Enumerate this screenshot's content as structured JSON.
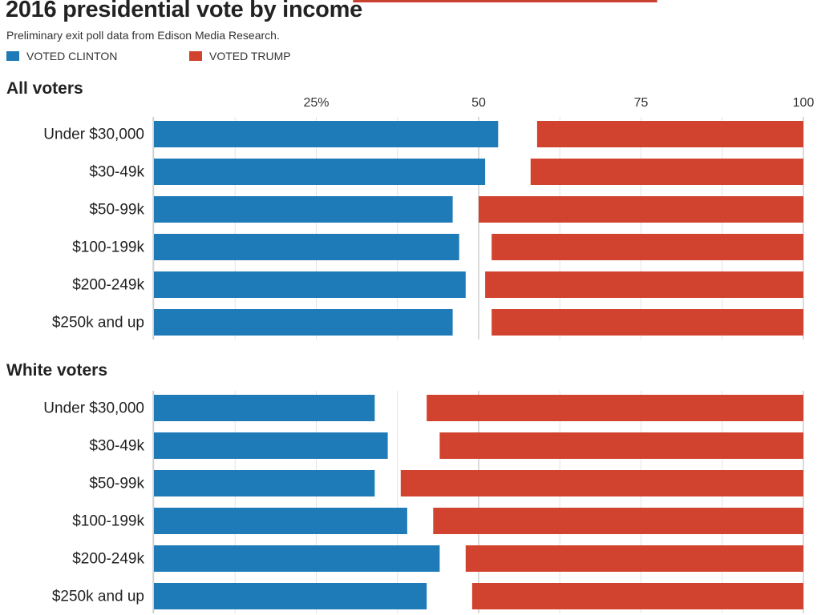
{
  "title": "2016 presidential vote by income",
  "subtitle": "Preliminary exit poll data from Edison Media Research.",
  "legend": [
    {
      "label": "VOTED CLINTON",
      "color": "#1f7ab8"
    },
    {
      "label": "VOTED TRUMP",
      "color": "#d2432f"
    }
  ],
  "accent_color": "#c9402e",
  "chart_data": [
    {
      "type": "bar",
      "stacked": "diverging",
      "title": "All voters",
      "axis_ticks": [
        {
          "value": 25,
          "label": "25%"
        },
        {
          "value": 50,
          "label": "50"
        },
        {
          "value": 75,
          "label": "75"
        },
        {
          "value": 100,
          "label": "100"
        }
      ],
      "xlim": [
        0,
        100
      ],
      "categories": [
        "Under $30,000",
        "$30-49k",
        "$50-99k",
        "$100-199k",
        "$200-249k",
        "$250k and up"
      ],
      "series": [
        {
          "name": "VOTED CLINTON",
          "values": [
            53,
            51,
            46,
            47,
            48,
            46
          ]
        },
        {
          "name": "VOTED TRUMP",
          "values": [
            41,
            42,
            50,
            48,
            49,
            48
          ]
        }
      ]
    },
    {
      "type": "bar",
      "stacked": "diverging",
      "title": "White voters",
      "axis_ticks": [],
      "xlim": [
        0,
        100
      ],
      "categories": [
        "Under $30,000",
        "$30-49k",
        "$50-99k",
        "$100-199k",
        "$200-249k",
        "$250k and up"
      ],
      "series": [
        {
          "name": "VOTED CLINTON",
          "values": [
            34,
            36,
            34,
            39,
            44,
            42
          ]
        },
        {
          "name": "VOTED TRUMP",
          "values": [
            58,
            56,
            62,
            57,
            52,
            51
          ]
        }
      ]
    }
  ]
}
